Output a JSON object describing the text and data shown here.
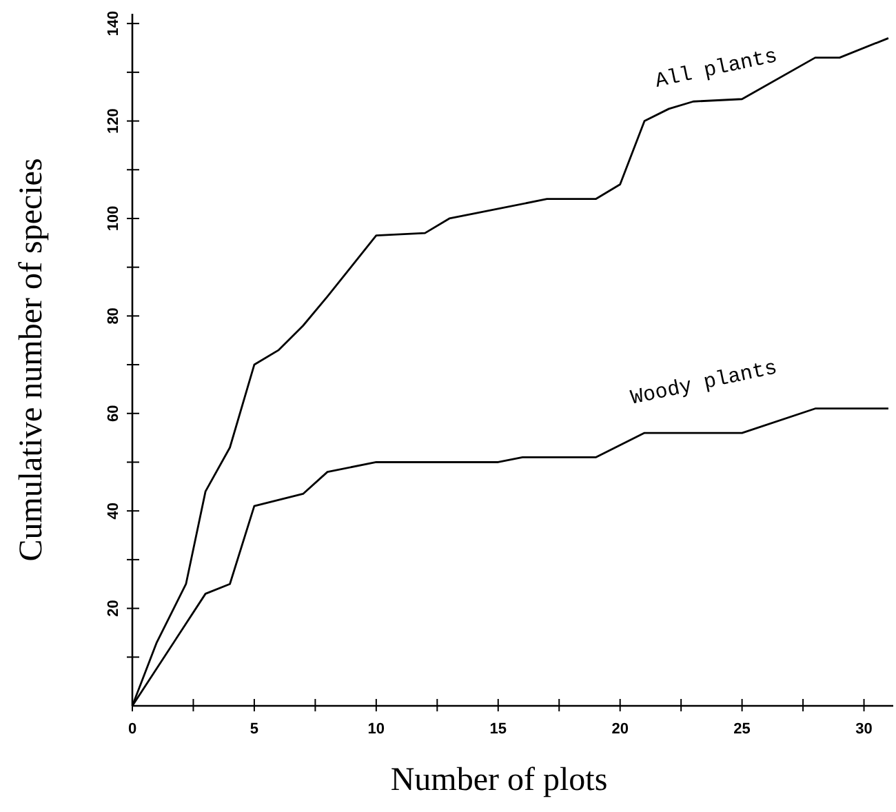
{
  "chart_data": {
    "type": "line",
    "xlabel": "Number of plots",
    "ylabel": "Cumulative number of species",
    "xlim": [
      0,
      31.2
    ],
    "ylim": [
      0,
      142
    ],
    "xticks": [
      0,
      {
        "value": 2.5,
        "label": null
      },
      5,
      {
        "value": 7.5,
        "label": null
      },
      10,
      {
        "value": 12.5,
        "label": null
      },
      15,
      {
        "value": 17.5,
        "label": null
      },
      20,
      {
        "value": 22.5,
        "label": null
      },
      25,
      {
        "value": 27.5,
        "label": null
      },
      30
    ],
    "yticks": [
      {
        "value": 10,
        "label": null
      },
      20,
      {
        "value": 30,
        "label": null
      },
      40,
      {
        "value": 50,
        "label": null
      },
      60,
      {
        "value": 70,
        "label": null
      },
      80,
      {
        "value": 90,
        "label": null
      },
      100,
      {
        "value": 110,
        "label": null
      },
      120,
      {
        "value": 130,
        "label": null
      },
      140
    ],
    "grid": false,
    "legend": false,
    "marker": "none",
    "line_style": "solid",
    "series": [
      {
        "name": "All plants",
        "color": "#000000",
        "x": [
          0,
          1,
          2.2,
          3,
          4,
          5,
          6,
          7,
          8,
          10,
          12,
          13,
          14,
          17,
          19,
          20,
          21,
          22,
          23,
          25,
          28,
          29,
          31
        ],
        "values": [
          0,
          13,
          25,
          44,
          53,
          70,
          73,
          78,
          84,
          96.5,
          97,
          100,
          101,
          104,
          104,
          107,
          120,
          122.5,
          124,
          124.5,
          133,
          133,
          137
        ]
      },
      {
        "name": "Woody plants",
        "color": "#000000",
        "x": [
          0,
          3,
          4,
          5,
          7,
          8,
          10,
          15,
          16,
          19,
          21,
          25,
          28,
          31
        ],
        "values": [
          0,
          23,
          25,
          41,
          43.5,
          48,
          50,
          50,
          51,
          51,
          56,
          56,
          61,
          61
        ]
      }
    ]
  }
}
